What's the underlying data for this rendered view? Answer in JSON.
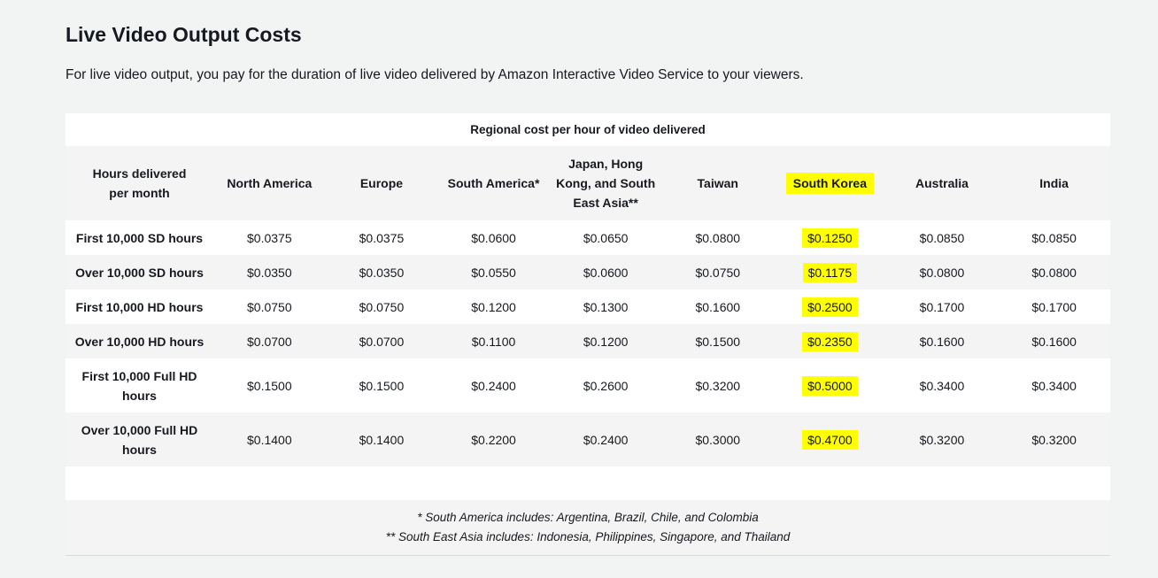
{
  "heading": "Live Video Output Costs",
  "intro": "For live video output, you pay for the duration of live video delivered by Amazon Interactive Video Service to your viewers.",
  "table": {
    "caption": "Regional cost per hour of video delivered",
    "row_header_label": "Hours delivered per month",
    "columns": [
      "North America",
      "Europe",
      "South America*",
      "Japan, Hong Kong, and South East Asia**",
      "Taiwan",
      "South Korea",
      "Australia",
      "India"
    ],
    "highlighted_column": "South Korea",
    "highlight_color": "#ffff00",
    "rows": [
      {
        "label": "First 10,000 SD hours",
        "values": [
          "$0.0375",
          "$0.0375",
          "$0.0600",
          "$0.0650",
          "$0.0800",
          "$0.1250",
          "$0.0850",
          "$0.0850"
        ]
      },
      {
        "label": "Over 10,000 SD hours",
        "values": [
          "$0.0350",
          "$0.0350",
          "$0.0550",
          "$0.0600",
          "$0.0750",
          "$0.1175",
          "$0.0800",
          "$0.0800"
        ]
      },
      {
        "label": "First 10,000 HD hours",
        "values": [
          "$0.0750",
          "$0.0750",
          "$0.1200",
          "$0.1300",
          "$0.1600",
          "$0.2500",
          "$0.1700",
          "$0.1700"
        ]
      },
      {
        "label": "Over 10,000 HD hours",
        "values": [
          "$0.0700",
          "$0.0700",
          "$0.1100",
          "$0.1200",
          "$0.1500",
          "$0.2350",
          "$0.1600",
          "$0.1600"
        ]
      },
      {
        "label": "First 10,000 Full HD hours",
        "values": [
          "$0.1500",
          "$0.1500",
          "$0.2400",
          "$0.2600",
          "$0.3200",
          "$0.5000",
          "$0.3400",
          "$0.3400"
        ]
      },
      {
        "label": "Over 10,000 Full HD hours",
        "values": [
          "$0.1400",
          "$0.1400",
          "$0.2200",
          "$0.2400",
          "$0.3000",
          "$0.4700",
          "$0.3200",
          "$0.3200"
        ]
      }
    ]
  },
  "notes": [
    "* South America includes: Argentina, Brazil, Chile, and Colombia",
    "** South East Asia includes: Indonesia, Philippines, Singapore, and Thailand"
  ]
}
